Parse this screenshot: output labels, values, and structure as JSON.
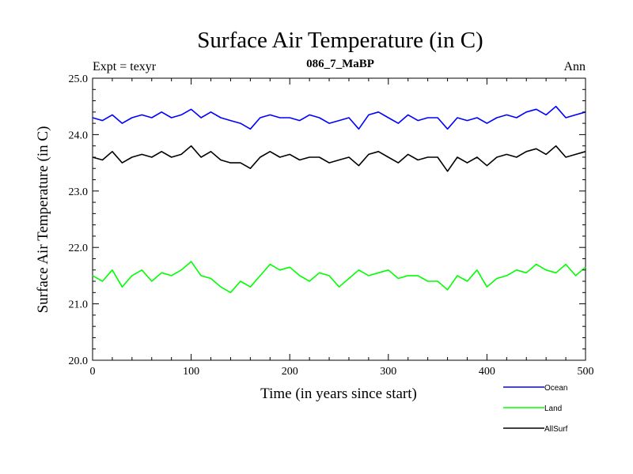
{
  "chart_data": {
    "type": "line",
    "title": "Surface Air Temperature (in C)",
    "subtitle": "086_7_MaBP",
    "left_label": "Expt = texyr",
    "right_label": "Ann",
    "xlabel": "Time (in years since start)",
    "ylabel": "Surface Air Temperature (in C)",
    "xlim": [
      0,
      500
    ],
    "ylim": [
      20.0,
      25.0
    ],
    "x_ticks": [
      0,
      100,
      200,
      300,
      400,
      500
    ],
    "x_tick_labels": [
      "0",
      "100",
      "200",
      "300",
      "400",
      "500"
    ],
    "y_ticks": [
      20.0,
      21.0,
      22.0,
      23.0,
      24.0,
      25.0
    ],
    "y_tick_labels": [
      "20.0",
      "21.0",
      "22.0",
      "23.0",
      "24.0",
      "25.0"
    ],
    "grid": false,
    "legend_position": "bottom-right",
    "series": [
      {
        "name": "Ocean",
        "color": "#0000ff",
        "x": [
          0,
          10,
          20,
          30,
          40,
          50,
          60,
          70,
          80,
          90,
          100,
          110,
          120,
          130,
          140,
          150,
          160,
          170,
          180,
          190,
          200,
          210,
          220,
          230,
          240,
          250,
          260,
          270,
          280,
          290,
          300,
          310,
          320,
          330,
          340,
          350,
          360,
          370,
          380,
          390,
          400,
          410,
          420,
          430,
          440,
          450,
          460,
          470,
          480,
          490,
          500
        ],
        "values": [
          24.3,
          24.25,
          24.35,
          24.2,
          24.3,
          24.35,
          24.3,
          24.4,
          24.3,
          24.35,
          24.45,
          24.3,
          24.4,
          24.3,
          24.25,
          24.2,
          24.1,
          24.3,
          24.35,
          24.3,
          24.3,
          24.25,
          24.35,
          24.3,
          24.2,
          24.25,
          24.3,
          24.1,
          24.35,
          24.4,
          24.3,
          24.2,
          24.35,
          24.25,
          24.3,
          24.3,
          24.1,
          24.3,
          24.25,
          24.3,
          24.2,
          24.3,
          24.35,
          24.3,
          24.4,
          24.45,
          24.35,
          24.5,
          24.3,
          24.35,
          24.4
        ]
      },
      {
        "name": "Land",
        "color": "#00ff00",
        "x": [
          0,
          10,
          20,
          30,
          40,
          50,
          60,
          70,
          80,
          90,
          100,
          110,
          120,
          130,
          140,
          150,
          160,
          170,
          180,
          190,
          200,
          210,
          220,
          230,
          240,
          250,
          260,
          270,
          280,
          290,
          300,
          310,
          320,
          330,
          340,
          350,
          360,
          370,
          380,
          390,
          400,
          410,
          420,
          430,
          440,
          450,
          460,
          470,
          480,
          490,
          500
        ],
        "values": [
          21.5,
          21.4,
          21.6,
          21.3,
          21.5,
          21.6,
          21.4,
          21.55,
          21.5,
          21.6,
          21.75,
          21.5,
          21.45,
          21.3,
          21.2,
          21.4,
          21.3,
          21.5,
          21.7,
          21.6,
          21.65,
          21.5,
          21.4,
          21.55,
          21.5,
          21.3,
          21.45,
          21.6,
          21.5,
          21.55,
          21.6,
          21.45,
          21.5,
          21.5,
          21.4,
          21.4,
          21.25,
          21.5,
          21.4,
          21.6,
          21.3,
          21.45,
          21.5,
          21.6,
          21.55,
          21.7,
          21.6,
          21.55,
          21.7,
          21.5,
          21.65
        ]
      },
      {
        "name": "AllSurf",
        "color": "#000000",
        "x": [
          0,
          10,
          20,
          30,
          40,
          50,
          60,
          70,
          80,
          90,
          100,
          110,
          120,
          130,
          140,
          150,
          160,
          170,
          180,
          190,
          200,
          210,
          220,
          230,
          240,
          250,
          260,
          270,
          280,
          290,
          300,
          310,
          320,
          330,
          340,
          350,
          360,
          370,
          380,
          390,
          400,
          410,
          420,
          430,
          440,
          450,
          460,
          470,
          480,
          490,
          500
        ],
        "values": [
          23.6,
          23.55,
          23.7,
          23.5,
          23.6,
          23.65,
          23.6,
          23.7,
          23.6,
          23.65,
          23.8,
          23.6,
          23.7,
          23.55,
          23.5,
          23.5,
          23.4,
          23.6,
          23.7,
          23.6,
          23.65,
          23.55,
          23.6,
          23.6,
          23.5,
          23.55,
          23.6,
          23.45,
          23.65,
          23.7,
          23.6,
          23.5,
          23.65,
          23.55,
          23.6,
          23.6,
          23.35,
          23.6,
          23.5,
          23.6,
          23.45,
          23.6,
          23.65,
          23.6,
          23.7,
          23.75,
          23.65,
          23.8,
          23.6,
          23.65,
          23.7
        ]
      }
    ]
  }
}
